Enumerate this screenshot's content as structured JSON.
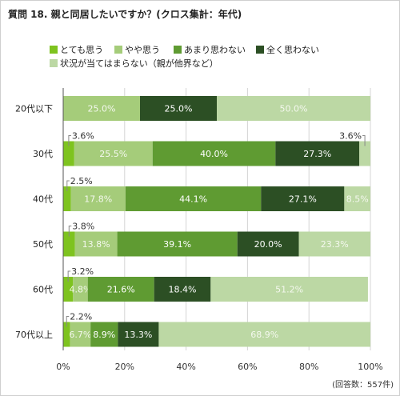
{
  "chart_data": {
    "type": "bar",
    "orientation": "horizontal",
    "stacked": true,
    "title": "質問 18. 親と同居したいですか？(クロス集計：年代)",
    "categories": [
      "20代以下",
      "30代",
      "40代",
      "50代",
      "60代",
      "70代以上"
    ],
    "series": [
      {
        "name": "とても思う",
        "color": "#7ec31f",
        "values": [
          0.0,
          3.6,
          2.5,
          3.8,
          3.2,
          2.2
        ]
      },
      {
        "name": "やや思う",
        "color": "#a5cc7a",
        "values": [
          25.0,
          25.5,
          17.8,
          13.8,
          4.8,
          6.7
        ]
      },
      {
        "name": "あまり思わない",
        "color": "#5f9b32",
        "values": [
          0.0,
          40.0,
          44.1,
          39.1,
          21.6,
          8.9
        ]
      },
      {
        "name": "全く思わない",
        "color": "#2c4f24",
        "values": [
          25.0,
          27.3,
          27.1,
          20.0,
          18.4,
          13.3
        ]
      },
      {
        "name": "状況が当てはまらない（親が他界など）",
        "color": "#bcd8a4",
        "values": [
          50.0,
          3.6,
          8.5,
          23.3,
          51.2,
          68.9
        ]
      }
    ],
    "xlim": [
      0,
      100
    ],
    "xticks": [
      "0%",
      "20%",
      "40%",
      "60%",
      "80%",
      "100%"
    ],
    "grid": true,
    "legend_position": "top-left"
  },
  "footer": {
    "answer_count": "(回答数：557件)"
  }
}
